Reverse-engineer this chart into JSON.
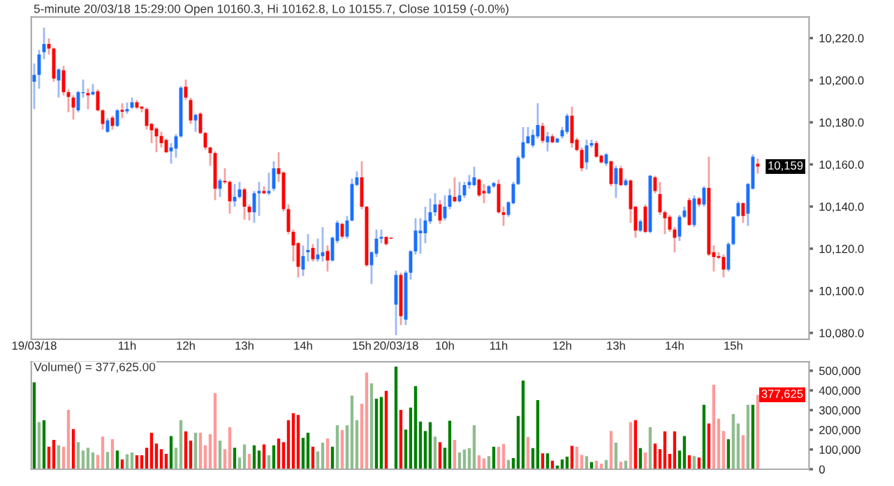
{
  "chart_data": [
    {
      "type": "candlestick",
      "title": "5-minute 20/03/18 15:29:00 Open 10160.3, Hi 10162.8, Lo 10155.7, Close 10159 (-0.0%)",
      "categories": [
        "19/03/18",
        null,
        null,
        null,
        null,
        null,
        null,
        null,
        null,
        null,
        null,
        null,
        null,
        null,
        null,
        null,
        null,
        null,
        null,
        "11h",
        null,
        null,
        null,
        null,
        null,
        null,
        null,
        null,
        null,
        null,
        null,
        "12h",
        null,
        null,
        null,
        null,
        null,
        null,
        null,
        null,
        null,
        null,
        null,
        "13h",
        null,
        null,
        null,
        null,
        null,
        null,
        null,
        null,
        null,
        null,
        null,
        "14h",
        null,
        null,
        null,
        null,
        null,
        null,
        null,
        null,
        null,
        null,
        null,
        "15h",
        null,
        null,
        null,
        null,
        null,
        null,
        "20/03/18",
        null,
        null,
        null,
        null,
        null,
        null,
        null,
        null,
        null,
        "10h",
        null,
        null,
        null,
        null,
        null,
        null,
        null,
        null,
        null,
        null,
        "11h",
        null,
        null,
        null,
        null,
        null,
        null,
        null,
        null,
        null,
        null,
        null,
        null,
        "12h",
        null,
        null,
        null,
        null,
        null,
        null,
        null,
        null,
        null,
        null,
        "13h",
        null,
        null,
        null,
        null,
        null,
        null,
        null,
        null,
        null,
        null,
        null,
        "14h",
        null,
        null,
        null,
        null,
        null,
        null,
        null,
        null,
        null,
        null,
        null,
        "15h",
        null,
        null,
        null,
        null,
        null
      ],
      "ohlc": [
        [
          10199.3,
          10207.9,
          10186.3,
          10202.5
        ],
        [
          10202.5,
          10214.4,
          10196,
          10212.2
        ],
        [
          10213.3,
          10225,
          10210,
          10217.2
        ],
        [
          10217.2,
          10219.8,
          10212.2,
          10215
        ],
        [
          10215,
          10215.5,
          10199.3,
          10200.8
        ],
        [
          10199.9,
          10205.7,
          10191.7,
          10205.1
        ],
        [
          10204.7,
          10206.8,
          10192.8,
          10194.3
        ],
        [
          10194.3,
          10195.6,
          10184.8,
          10192.1
        ],
        [
          10191.7,
          10192.8,
          10181.3,
          10187
        ],
        [
          10185.7,
          10194.9,
          10184.8,
          10194.3
        ],
        [
          10193.9,
          10200.3,
          10191.7,
          10194.3
        ],
        [
          10193.9,
          10196,
          10186.3,
          10192.8
        ],
        [
          10193.2,
          10198.2,
          10192.8,
          10194.5
        ],
        [
          10194.7,
          10195.6,
          10185.2,
          10185.7
        ],
        [
          10185.7,
          10186.3,
          10176.6,
          10179.2
        ],
        [
          10175.5,
          10182,
          10175.1,
          10180.9
        ],
        [
          10182.2,
          10183.1,
          10176.6,
          10178.3
        ],
        [
          10178.3,
          10186.3,
          10177.7,
          10185.7
        ],
        [
          10185.9,
          10189.1,
          10182,
          10185
        ],
        [
          10185.2,
          10189.4,
          10184.1,
          10186.3
        ],
        [
          10187,
          10191.7,
          10186.3,
          10189.5
        ],
        [
          10189.5,
          10190.6,
          10186.3,
          10187
        ],
        [
          10187.4,
          10187.8,
          10184.8,
          10186.5
        ],
        [
          10186.3,
          10187,
          10176.6,
          10178.3
        ],
        [
          10179.2,
          10179.8,
          10170.1,
          10176.2
        ],
        [
          10177,
          10177.7,
          10165.8,
          10173.3
        ],
        [
          10173.5,
          10175.5,
          10168,
          10170.1
        ],
        [
          10171.6,
          10172.3,
          10165.4,
          10165.8
        ],
        [
          10166.2,
          10170.1,
          10160.4,
          10168
        ],
        [
          10167.5,
          10174.4,
          10163.2,
          10173.3
        ],
        [
          10173.3,
          10197.1,
          10172.7,
          10196.5
        ],
        [
          10196.9,
          10200.3,
          10190.6,
          10191.7
        ],
        [
          10190.6,
          10191.7,
          10179.2,
          10180.9
        ],
        [
          10180.9,
          10184.1,
          10175.5,
          10183.5
        ],
        [
          10184.1,
          10184.8,
          10174.4,
          10174.9
        ],
        [
          10174.9,
          10175.5,
          10166.9,
          10168
        ],
        [
          10168,
          10168.4,
          10159.3,
          10165.4
        ],
        [
          10165.4,
          10166.2,
          10143.1,
          10148.5
        ],
        [
          10148.5,
          10153.3,
          10144.6,
          10152.4
        ],
        [
          10152.2,
          10158.2,
          10150.7,
          10151.5
        ],
        [
          10151.7,
          10152.4,
          10136.6,
          10142.5
        ],
        [
          10142.5,
          10150.7,
          10139.9,
          10144.6
        ],
        [
          10144.6,
          10151.7,
          10143.8,
          10148.1
        ],
        [
          10148.1,
          10148.9,
          10133.8,
          10139.9
        ],
        [
          10139.9,
          10141,
          10133.4,
          10137.3
        ],
        [
          10137.3,
          10147.4,
          10132.3,
          10146.3
        ],
        [
          10146.3,
          10151.7,
          10135.5,
          10147.4
        ],
        [
          10147.4,
          10149.6,
          10145.9,
          10146.3
        ],
        [
          10146.3,
          10156.1,
          10145.3,
          10147.4
        ],
        [
          10148.5,
          10161.5,
          10147.4,
          10158.2
        ],
        [
          10158.2,
          10165.8,
          10151.7,
          10155.4
        ],
        [
          10156.1,
          10156.7,
          10137.7,
          10138.8
        ],
        [
          10138.8,
          10141,
          10126.9,
          10128
        ],
        [
          10128,
          10129.1,
          10113.9,
          10121.5
        ],
        [
          10122.6,
          10123,
          10106.4,
          10111.4
        ],
        [
          10110.1,
          10121.5,
          10107,
          10116.5
        ],
        [
          10118.3,
          10126.9,
          10113.9,
          10119.4
        ],
        [
          10120.4,
          10122.2,
          10113.9,
          10115
        ],
        [
          10115,
          10124.8,
          10113.9,
          10117.2
        ],
        [
          10116.5,
          10130.2,
          10113.9,
          10118.3
        ],
        [
          10118.9,
          10121.5,
          10109.2,
          10114.4
        ],
        [
          10114.4,
          10125.8,
          10113.9,
          10125.2
        ],
        [
          10123.7,
          10133.4,
          10122.6,
          10132.3
        ],
        [
          10131.7,
          10132.3,
          10124.8,
          10125.8
        ],
        [
          10125.8,
          10135.5,
          10124.8,
          10133.4
        ],
        [
          10133.4,
          10153.3,
          10133,
          10150.7
        ],
        [
          10150.3,
          10156.7,
          10149.6,
          10153.9
        ],
        [
          10153.9,
          10161.5,
          10138.8,
          10139.9
        ],
        [
          10139.9,
          10140.3,
          10111.4,
          10112.2
        ],
        [
          10112.2,
          10118.7,
          10103.2,
          10118.3
        ],
        [
          10117.6,
          10129.1,
          10116.1,
          10124.8
        ],
        [
          10124.8,
          10129.1,
          10122.6,
          10125.6
        ],
        [
          10125.6,
          10125.8,
          10121.5,
          10122.2
        ],
        [
          10125.2,
          10125.4,
          10124.6,
          10124.8
        ],
        [
          10093.4,
          10109.6,
          10078.9,
          10107.5
        ],
        [
          10107.5,
          10108.6,
          10083.7,
          10088
        ],
        [
          10086.3,
          10109.6,
          10083.7,
          10108.6
        ],
        [
          10108.6,
          10119.4,
          10105.3,
          10118.7
        ],
        [
          10118.7,
          10134.5,
          10117.2,
          10128.6
        ],
        [
          10127.3,
          10134.5,
          10117.6,
          10128.6
        ],
        [
          10127.3,
          10139.9,
          10122.6,
          10133.4
        ],
        [
          10133,
          10143.8,
          10131.7,
          10137.3
        ],
        [
          10137.3,
          10146.3,
          10135.5,
          10141
        ],
        [
          10141,
          10143.1,
          10131.7,
          10133.4
        ],
        [
          10134.5,
          10145.3,
          10133.4,
          10139.9
        ],
        [
          10139.9,
          10148.5,
          10138.8,
          10145.3
        ],
        [
          10144.6,
          10153.9,
          10142,
          10142.5
        ],
        [
          10142.5,
          10151.7,
          10142,
          10145.3
        ],
        [
          10145.3,
          10151.7,
          10144.2,
          10150.2
        ],
        [
          10150.2,
          10155,
          10148.5,
          10151.7
        ],
        [
          10150.2,
          10158.9,
          10149.6,
          10153.9
        ],
        [
          10152.8,
          10153.3,
          10144.6,
          10145.3
        ],
        [
          10147.4,
          10150.7,
          10141.6,
          10146.3
        ],
        [
          10146.3,
          10150.2,
          10145.9,
          10149.6
        ],
        [
          10149.6,
          10151.7,
          10148.9,
          10151.1
        ],
        [
          10150.7,
          10152.8,
          10136.6,
          10137.3
        ],
        [
          10137.3,
          10139.9,
          10130.8,
          10136
        ],
        [
          10136,
          10142.5,
          10135.1,
          10142
        ],
        [
          10141.6,
          10151.7,
          10141,
          10150.7
        ],
        [
          10150.7,
          10164.1,
          10150.2,
          10163.2
        ],
        [
          10163.2,
          10177.7,
          10162.5,
          10170.5
        ],
        [
          10170.1,
          10177.7,
          10169.7,
          10173.3
        ],
        [
          10169,
          10176.6,
          10168,
          10174
        ],
        [
          10173.3,
          10189.1,
          10172.3,
          10178.7
        ],
        [
          10178.3,
          10179.8,
          10170.1,
          10171.2
        ],
        [
          10170.5,
          10175.5,
          10166.2,
          10173.3
        ],
        [
          10173.3,
          10174.4,
          10170.1,
          10170.5
        ],
        [
          10170.5,
          10172.7,
          10170.1,
          10172.3
        ],
        [
          10173.3,
          10177.7,
          10172.3,
          10176.2
        ],
        [
          10175.5,
          10184.1,
          10174.4,
          10183.1
        ],
        [
          10183.1,
          10187.4,
          10168,
          10170.1
        ],
        [
          10171.8,
          10172.7,
          10166.2,
          10166.9
        ],
        [
          10166.9,
          10168,
          10156.7,
          10158.2
        ],
        [
          10161,
          10171.8,
          10157.6,
          10169
        ],
        [
          10169,
          10171.8,
          10168,
          10170.1
        ],
        [
          10170.1,
          10171.2,
          10163.2,
          10163.6
        ],
        [
          10164.1,
          10164.7,
          10160.4,
          10161
        ],
        [
          10160.4,
          10165.4,
          10159.3,
          10164.7
        ],
        [
          10161.5,
          10161.9,
          10149.6,
          10150.7
        ],
        [
          10150.7,
          10159.3,
          10144.2,
          10158.2
        ],
        [
          10158.2,
          10159.3,
          10149.6,
          10150.2
        ],
        [
          10150.2,
          10153.3,
          10149.6,
          10152.4
        ],
        [
          10152.4,
          10152.8,
          10132.3,
          10138.8
        ],
        [
          10139.9,
          10140.3,
          10125.2,
          10128.6
        ],
        [
          10128.6,
          10133.8,
          10128,
          10133
        ],
        [
          10139.9,
          10141,
          10127.3,
          10128
        ],
        [
          10128,
          10155,
          10127.3,
          10154.6
        ],
        [
          10153.9,
          10154.6,
          10146.3,
          10147.4
        ],
        [
          10145.9,
          10151.7,
          10136,
          10137.3
        ],
        [
          10137.3,
          10138.1,
          10126.9,
          10134.5
        ],
        [
          10135.1,
          10136,
          10128,
          10129.1
        ],
        [
          10129.1,
          10130.2,
          10118.3,
          10125.2
        ],
        [
          10125.8,
          10136,
          10123.7,
          10135.1
        ],
        [
          10135.1,
          10139.9,
          10134.5,
          10138.1
        ],
        [
          10143.1,
          10144.2,
          10130.8,
          10131.2
        ],
        [
          10131.2,
          10145.3,
          10130.2,
          10143.8
        ],
        [
          10143.8,
          10144.6,
          10139.9,
          10141
        ],
        [
          10141,
          10149.6,
          10139.9,
          10148.9
        ],
        [
          10148.9,
          10163.6,
          10116.5,
          10117.2
        ],
        [
          10118.3,
          10121.5,
          10109.2,
          10116.1
        ],
        [
          10116.5,
          10118.3,
          10115,
          10115.7
        ],
        [
          10116.1,
          10117.2,
          10106.4,
          10110.1
        ],
        [
          10110.1,
          10123,
          10109.2,
          10122.2
        ],
        [
          10122.2,
          10135.5,
          10121.5,
          10135.1
        ],
        [
          10135.5,
          10142.5,
          10135.1,
          10141.6
        ],
        [
          10141.6,
          10142,
          10132.3,
          10135.5
        ],
        [
          10136.6,
          10151.1,
          10130.8,
          10150.7
        ],
        [
          10148.5,
          10164.7,
          10148.1,
          10163.6
        ],
        [
          10160.3,
          10162.8,
          10155.7,
          10159
        ]
      ],
      "ylim": [
        10077,
        10230
      ],
      "yticks": [
        {
          "value": 10080,
          "label": "10,080.0"
        },
        {
          "value": 10100,
          "label": "10,100.0"
        },
        {
          "value": 10120,
          "label": "10,120.0"
        },
        {
          "value": 10140,
          "label": "10,140.0"
        },
        {
          "value": 10160,
          "label": "10,160.0"
        },
        {
          "value": 10180,
          "label": "10,180.0"
        },
        {
          "value": 10200,
          "label": "10,200.0"
        },
        {
          "value": 10220,
          "label": "10,220.0"
        }
      ],
      "annotations": [
        "10,159"
      ],
      "grid": false,
      "legend": false
    },
    {
      "type": "bar",
      "title": "Volume() = 377,625.00",
      "categories": [
        null,
        null,
        null,
        null,
        null,
        null,
        null,
        null,
        null,
        null,
        null,
        null,
        null,
        null,
        null,
        null,
        null,
        null,
        null,
        null,
        null,
        null,
        null,
        null,
        null,
        null,
        null,
        null,
        null,
        null,
        null,
        null,
        null,
        null,
        null,
        null,
        null,
        null,
        null,
        null,
        null,
        null,
        null,
        null,
        null,
        null,
        null,
        null,
        null,
        null,
        null,
        null,
        null,
        null,
        null,
        null,
        null,
        null,
        null,
        null,
        null,
        null,
        null,
        null,
        null,
        null,
        null,
        null,
        null,
        null,
        null,
        null,
        null,
        null,
        null,
        null,
        null,
        null,
        null,
        null,
        null,
        null,
        null,
        null,
        null,
        null,
        null,
        null,
        null,
        null,
        null,
        null,
        null,
        null,
        null,
        null,
        null,
        null,
        null,
        null,
        null,
        null,
        null,
        null,
        null,
        null,
        null,
        null,
        null,
        null,
        null,
        null,
        null,
        null,
        null,
        null,
        null,
        null,
        null,
        null,
        null,
        null,
        null,
        null,
        null,
        null,
        null,
        null,
        null,
        null,
        null,
        null,
        null,
        null,
        null,
        null,
        null,
        null,
        null,
        null,
        null,
        null,
        null,
        null,
        null,
        null,
        null,
        null,
        null
      ],
      "values": [
        441000,
        239000,
        249000,
        114000,
        149000,
        121000,
        114000,
        301000,
        204000,
        137000,
        95000,
        109000,
        85000,
        73000,
        166000,
        88000,
        152000,
        95000,
        50000,
        76000,
        85000,
        71000,
        71000,
        109000,
        185000,
        130000,
        102000,
        78000,
        168000,
        109000,
        249000,
        192000,
        145000,
        185000,
        185000,
        121000,
        178000,
        386000,
        145000,
        102000,
        213000,
        109000,
        59000,
        126000,
        78000,
        121000,
        95000,
        126000,
        71000,
        121000,
        156000,
        137000,
        249000,
        284000,
        275000,
        159000,
        185000,
        114000,
        90000,
        135000,
        156000,
        114000,
        223000,
        199000,
        223000,
        374000,
        249000,
        332000,
        491000,
        436000,
        358000,
        367000,
        398000,
        null,
        521000,
        301000,
        201000,
        313000,
        422000,
        242000,
        194000,
        239000,
        166000,
        137000,
        109000,
        246000,
        149000,
        85000,
        100000,
        107000,
        223000,
        71000,
        55000,
        66000,
        114000,
        114000,
        128000,
        47000,
        57000,
        270000,
        450000,
        164000,
        107000,
        351000,
        81000,
        81000,
        43000,
        19000,
        50000,
        64000,
        119000,
        114000,
        73000,
        66000,
        36000,
        43000,
        28000,
        47000,
        194000,
        135000,
        38000,
        43000,
        239000,
        249000,
        107000,
        85000,
        213000,
        130000,
        102000,
        192000,
        78000,
        192000,
        95000,
        168000,
        71000,
        66000,
        59000,
        327000,
        232000,
        429000,
        256000,
        194000,
        152000,
        280000,
        232000,
        173000,
        327000,
        327000,
        377625
      ],
      "colors": [
        "#008000",
        "#8fbc8f",
        "#008000",
        "#ff0000",
        "#ff0000",
        "#8fbc8f",
        "#ff9999",
        "#ff9999",
        "#ff0000",
        "#8fbc8f",
        "#8fbc8f",
        "#8fbc8f",
        "#8fbc8f",
        "#ff9999",
        "#ff9999",
        "#8fbc8f",
        "#ff9999",
        "#008000",
        "#ff0000",
        "#8fbc8f",
        "#8fbc8f",
        "#ff0000",
        "#ff0000",
        "#ff0000",
        "#ff0000",
        "#ff0000",
        "#ff0000",
        "#ff0000",
        "#008000",
        "#8fbc8f",
        "#8fbc8f",
        "#ff0000",
        "#ff0000",
        "#8fbc8f",
        "#ff9999",
        "#ff9999",
        "#ff9999",
        "#ff9999",
        "#8fbc8f",
        "#ff9999",
        "#ff9999",
        "#008000",
        "#8fbc8f",
        "#8fbc8f",
        "#ff9999",
        "#008000",
        "#008000",
        "#ff0000",
        "#8fbc8f",
        "#008000",
        "#ff0000",
        "#ff0000",
        "#ff0000",
        "#ff0000",
        "#ff0000",
        "#008000",
        "#008000",
        "#ff0000",
        "#8fbc8f",
        "#8fbc8f",
        "#ff9999",
        "#008000",
        "#8fbc8f",
        "#ff9999",
        "#8fbc8f",
        "#8fbc8f",
        "#8fbc8f",
        "#ff9999",
        "#ff9999",
        "#8fbc8f",
        "#008000",
        "#008000",
        "#ff0000",
        "#008000",
        "#008000",
        "#ff0000",
        "#008000",
        "#008000",
        "#008000",
        "#008000",
        "#008000",
        "#008000",
        "#8fbc8f",
        "#ff0000",
        "#008000",
        "#008000",
        "#ff9999",
        "#8fbc8f",
        "#8fbc8f",
        "#8fbc8f",
        "#8fbc8f",
        "#ff9999",
        "#ff9999",
        "#8fbc8f",
        "#008000",
        "#ff9999",
        "#ff9999",
        "#8fbc8f",
        "#008000",
        "#008000",
        "#008000",
        "#ff9999",
        "#008000",
        "#008000",
        "#ff0000",
        "#008000",
        "#ff0000",
        "#008000",
        "#008000",
        "#008000",
        "#ff0000",
        "#ff9999",
        "#ff9999",
        "#8fbc8f",
        "#008000",
        "#ff9999",
        "#ff9999",
        "#8fbc8f",
        "#ff9999",
        "#8fbc8f",
        "#ff9999",
        "#8fbc8f",
        "#ff9999",
        "#ff0000",
        "#008000",
        "#ff9999",
        "#8fbc8f",
        "#ff0000",
        "#ff0000",
        "#ff0000",
        "#ff0000",
        "#ff0000",
        "#008000",
        "#008000",
        "#ff0000",
        "#8fbc8f",
        "#ff0000",
        "#008000",
        "#ff0000",
        "#ff9999",
        "#ff9999",
        "#ff9999",
        "#008000",
        "#8fbc8f",
        "#8fbc8f",
        "#ff9999",
        "#8fbc8f",
        "#008000",
        "#ff9999"
      ],
      "ylim": [
        0,
        545000
      ],
      "yticks": [
        0,
        {
          "value": 100000,
          "label": "100,000"
        },
        {
          "value": 200000,
          "label": "200,000"
        },
        {
          "value": 300000,
          "label": "300,000"
        },
        {
          "value": 400000,
          "label": "400,000"
        },
        {
          "value": 500000,
          "label": "500,000"
        }
      ],
      "annotations": [
        "377,625"
      ],
      "tick_labels": "y",
      "grid": false,
      "legend": false
    }
  ]
}
